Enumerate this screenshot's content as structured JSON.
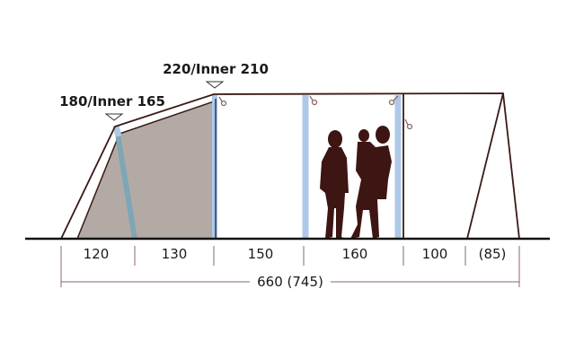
{
  "heights": {
    "front": "180/Inner 165",
    "peak": "220/Inner 210"
  },
  "segments": [
    "120",
    "130",
    "150",
    "160",
    "100",
    "(85)"
  ],
  "total": "660 (745)",
  "colors": {
    "outline": "#3a1a16",
    "inner_tent": "#b3aaa6",
    "pole_front": "#7fa6b4",
    "pole_light": "#aec8e8",
    "silhouette": "#3d1512"
  }
}
